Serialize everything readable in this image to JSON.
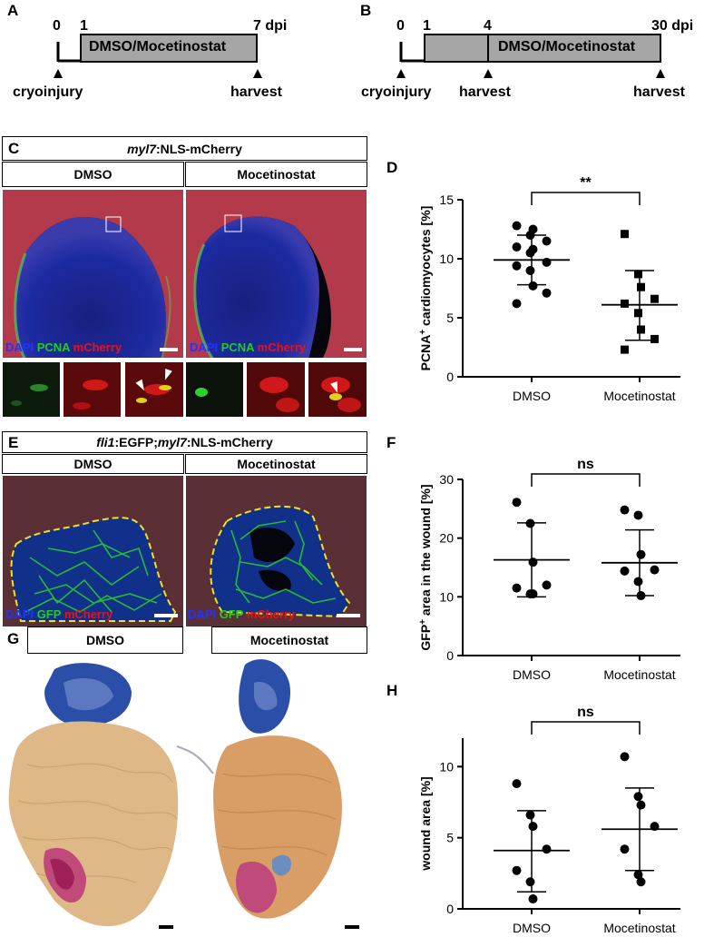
{
  "panelA": {
    "letter": "A",
    "t0": "0",
    "t1": "1",
    "t7": "7 dpi",
    "treatment": "DMSO/Mocetinostat",
    "event_left": "cryoinjury",
    "event_right": "harvest"
  },
  "panelB": {
    "letter": "B",
    "t0": "0",
    "t1": "1",
    "t4": "4",
    "t30": "30 dpi",
    "treatment": "DMSO/Mocetinostat",
    "event_left": "cryoinjury",
    "event_mid": "harvest",
    "event_right": "harvest"
  },
  "panelC": {
    "letter": "C",
    "title_italic": "myl7",
    "title_rest": ":NLS-mCherry",
    "col1": "DMSO",
    "col2": "Mocetinostat",
    "legend": {
      "dapi": "DAPI",
      "pcna": "PCNA",
      "mcherry": "mCherry"
    }
  },
  "panelE": {
    "letter": "E",
    "title_italic1": "fli1",
    "title_mid": ":EGFP;",
    "title_italic2": "myl7",
    "title_rest": ":NLS-mCherry",
    "col1": "DMSO",
    "col2": "Mocetinostat",
    "legend": {
      "dapi": "DAPI",
      "gfp": "GFP",
      "mcherry": "mCherry"
    }
  },
  "panelG": {
    "letter": "G",
    "col1": "DMSO",
    "col2": "Mocetinostat"
  },
  "colors": {
    "dapi": "#2233ff",
    "green": "#22cc22",
    "red": "#ee1111",
    "timeline_fill": "#a6a6a6",
    "wound_outline": "#f0e020"
  },
  "chart_data": [
    {
      "panel": "D",
      "type": "scatter",
      "ylabel_pre": "PCNA",
      "ylabel_sup": "+",
      "ylabel_post": " cardiomyocytes  [%]",
      "categories": [
        "DMSO",
        "Mocetinostat"
      ],
      "ylim": [
        0,
        15
      ],
      "yticks": [
        "0",
        "5",
        "10",
        "15"
      ],
      "significance": "**",
      "series": [
        {
          "category": "DMSO",
          "marker": "circle",
          "mean": 9.9,
          "sd_low": 7.8,
          "sd_high": 12.0,
          "values": [
            12.8,
            12.0,
            12.5,
            11.5,
            11.0,
            10.5,
            10.8,
            9.7,
            9.4,
            9.0,
            7.7,
            7.1,
            6.2
          ]
        },
        {
          "category": "Mocetinostat",
          "marker": "square",
          "mean": 6.1,
          "sd_low": 3.1,
          "sd_high": 9.0,
          "values": [
            12.1,
            8.7,
            7.6,
            6.6,
            6.2,
            5.4,
            4.0,
            3.2,
            2.3
          ]
        }
      ]
    },
    {
      "panel": "F",
      "type": "scatter",
      "ylabel_pre": "GFP",
      "ylabel_sup": "+",
      "ylabel_post": " area in the wound [%]",
      "categories": [
        "DMSO",
        "Mocetinostat"
      ],
      "ylim": [
        0,
        30
      ],
      "yticks": [
        "0",
        "10",
        "20",
        "30"
      ],
      "significance": "ns",
      "series": [
        {
          "category": "DMSO",
          "marker": "circle",
          "mean": 16.3,
          "sd_low": 10.0,
          "sd_high": 22.6,
          "values": [
            26.1,
            22.5,
            15.9,
            12.0,
            11.5,
            10.5,
            10.5
          ]
        },
        {
          "category": "Mocetinostat",
          "marker": "circle",
          "mean": 15.8,
          "sd_low": 10.2,
          "sd_high": 21.4,
          "values": [
            24.8,
            23.9,
            17.2,
            14.6,
            14.4,
            12.6,
            10.2
          ]
        }
      ]
    },
    {
      "panel": "H",
      "type": "scatter",
      "ylabel_pre": "wound area [%]",
      "ylabel_sup": "",
      "ylabel_post": "",
      "categories": [
        "DMSO",
        "Mocetinostat"
      ],
      "ylim": [
        0,
        12
      ],
      "yticks": [
        "0",
        "5",
        "10"
      ],
      "significance": "ns",
      "series": [
        {
          "category": "DMSO",
          "marker": "circle",
          "mean": 4.1,
          "sd_low": 1.2,
          "sd_high": 6.9,
          "values": [
            8.8,
            6.6,
            5.8,
            4.2,
            2.7,
            1.9,
            0.7
          ]
        },
        {
          "category": "Mocetinostat",
          "marker": "circle",
          "mean": 5.6,
          "sd_low": 2.7,
          "sd_high": 8.5,
          "values": [
            10.7,
            7.9,
            7.3,
            5.8,
            4.2,
            2.4,
            1.9
          ]
        }
      ]
    }
  ]
}
